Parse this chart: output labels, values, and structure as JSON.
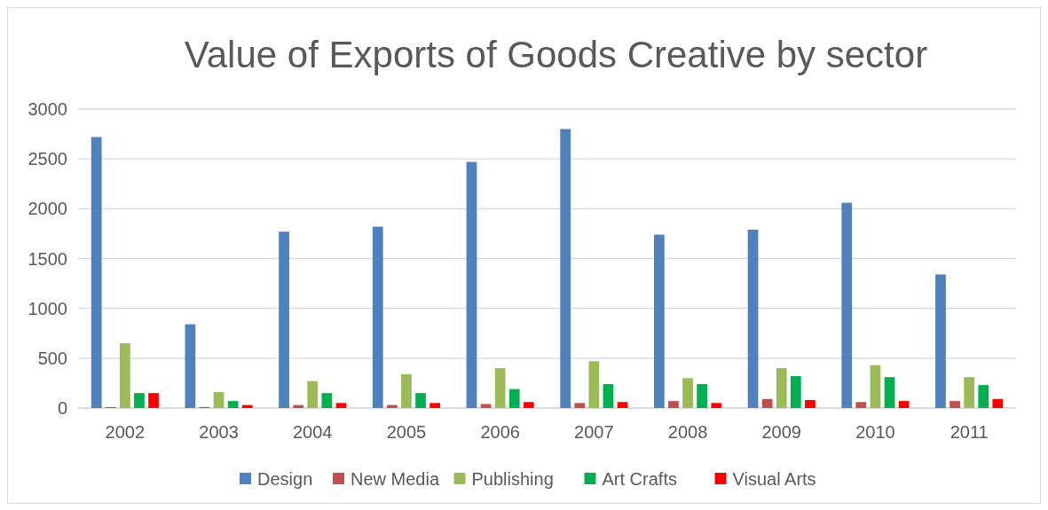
{
  "chart_data": {
    "type": "bar",
    "title": "Value of Exports of Goods Creative by sector",
    "categories": [
      "2002",
      "2003",
      "2004",
      "2005",
      "2006",
      "2007",
      "2008",
      "2009",
      "2010",
      "2011"
    ],
    "series": [
      {
        "name": "Design",
        "color": "#4f81bd",
        "values": [
          2720,
          840,
          1770,
          1820,
          2470,
          2800,
          1740,
          1790,
          2060,
          1340
        ]
      },
      {
        "name": "New Media",
        "color": "#c0504d",
        "values": [
          10,
          10,
          30,
          30,
          40,
          50,
          70,
          90,
          60,
          70
        ]
      },
      {
        "name": "Publishing",
        "color": "#9bbb59",
        "values": [
          650,
          160,
          270,
          340,
          400,
          470,
          300,
          400,
          430,
          310
        ]
      },
      {
        "name": "Art Crafts",
        "color": "#00b050",
        "values": [
          150,
          70,
          150,
          150,
          190,
          240,
          240,
          320,
          310,
          230
        ]
      },
      {
        "name": "Visual Arts",
        "color": "#ff0000",
        "values": [
          150,
          30,
          50,
          50,
          60,
          60,
          50,
          80,
          70,
          90
        ]
      }
    ],
    "ylim": [
      0,
      3000
    ],
    "yticks": [
      0,
      500,
      1000,
      1500,
      2000,
      2500,
      3000
    ],
    "grid": "y",
    "legend": "bottom"
  }
}
